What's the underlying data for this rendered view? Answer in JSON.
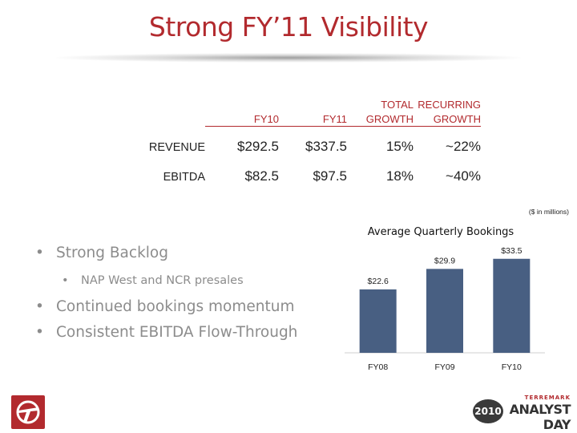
{
  "slide": {
    "title": "Strong FY’11 Visibility"
  },
  "table": {
    "headers": {
      "fy10": "FY10",
      "fy11": "FY11",
      "total_growth_1": "TOTAL",
      "total_growth_2": "GROWTH",
      "recurring_growth_1": "RECURRING",
      "recurring_growth_2": "GROWTH"
    },
    "rows": [
      {
        "label": "REVENUE",
        "fy10": "$292.5",
        "fy11": "$337.5",
        "total_growth": "15%",
        "recurring_growth": "~22%"
      },
      {
        "label": "EBITDA",
        "fy10": "$82.5",
        "fy11": "$97.5",
        "total_growth": "18%",
        "recurring_growth": "~40%"
      }
    ],
    "note": "($ in millions)"
  },
  "bullets": {
    "items": [
      {
        "text": "Strong Backlog",
        "level": 1
      },
      {
        "text": "NAP West and NCR presales",
        "level": 2
      },
      {
        "text": "Continued bookings momentum",
        "level": 1
      },
      {
        "text": "Consistent EBITDA Flow-Through",
        "level": 1
      }
    ],
    "bullet_glyph": "•"
  },
  "chart_data": {
    "type": "bar",
    "title": "Average Quarterly Bookings",
    "categories": [
      "FY08",
      "FY09",
      "FY10"
    ],
    "values": [
      22.6,
      29.9,
      33.5
    ],
    "data_labels": [
      "$22.6",
      "$29.9",
      "$33.5"
    ],
    "ylim": [
      0,
      40
    ],
    "grid": false,
    "bar_color": "#485f82",
    "xlabel": "",
    "ylabel": ""
  },
  "branding": {
    "year": "2010",
    "company": "TERREMARK",
    "event": "ANALYST DAY",
    "accent_color": "#b22a2e",
    "logo_icon": "terremark-logo-icon"
  }
}
